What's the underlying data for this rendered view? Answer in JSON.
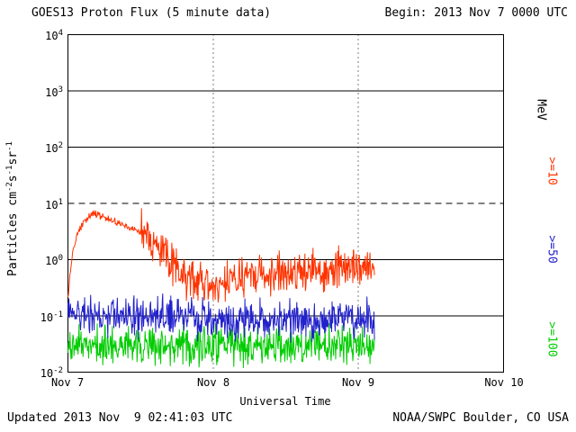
{
  "footer": {
    "updated": "Updated 2013 Nov  9 02:41:03 UTC",
    "source": "NOAA/SWPC Boulder, CO USA"
  },
  "chart_data": {
    "type": "line",
    "title": "GOES13 Proton Flux (5 minute data)",
    "begin_label": "Begin: 2013 Nov 7 0000 UTC",
    "xlabel": "Universal Time",
    "ylabel": "Particles cm-2s-1sr-1",
    "ylabel_parts": [
      "Particles cm",
      "-2",
      "s",
      "-1",
      "sr",
      "-1"
    ],
    "x_ticks": [
      "Nov 7",
      "Nov 8",
      "Nov 9",
      "Nov 10"
    ],
    "x_range_hours": [
      0,
      72
    ],
    "y_log_range": [
      -2,
      4
    ],
    "y_ticks": [
      {
        "base": "10",
        "exp": "4"
      },
      {
        "base": "10",
        "exp": "3"
      },
      {
        "base": "10",
        "exp": "2"
      },
      {
        "base": "10",
        "exp": "1"
      },
      {
        "base": "10",
        "exp": "0"
      },
      {
        "base": "10",
        "exp": "-1"
      },
      {
        "base": "10",
        "exp": "-2"
      }
    ],
    "grid": {
      "horizontal": "solid line per decade, dashed at threshold 10^1",
      "vertical": "dotted at day boundaries Nov 8 and Nov 9"
    },
    "threshold": {
      "value": 10,
      "style": "dashed"
    },
    "sample_minutes": 5,
    "data_end_hour": 50.68,
    "legend": {
      "position": "right",
      "title": "MeV",
      "entries": [
        {
          "label": ">=10",
          "color": "#ff3300"
        },
        {
          "label": ">=50",
          "color": "#2222cc"
        },
        {
          "label": ">=100",
          "color": "#00cc00"
        }
      ]
    },
    "series": [
      {
        "name": "Proton flux >=10 MeV",
        "label": ">=10",
        "color": "#ff3300",
        "hours": [
          0,
          0.7,
          1.5,
          2.5,
          3.5,
          4.2,
          5,
          6.5,
          8,
          10,
          11.5,
          13,
          15,
          17,
          19,
          21,
          24,
          28,
          32,
          36,
          40,
          44,
          48,
          50.7
        ],
        "values": [
          0.22,
          1.2,
          2.8,
          4.5,
          5.9,
          6.5,
          6.2,
          5.3,
          4.6,
          3.7,
          3.2,
          2.6,
          1.6,
          0.9,
          0.55,
          0.4,
          0.33,
          0.45,
          0.5,
          0.6,
          0.65,
          0.7,
          0.72,
          0.65
        ],
        "smooth_until_hour": 12,
        "noise_dex_smooth": 0.03,
        "noise_dex": 0.18
      },
      {
        "name": "Proton flux >=50 MeV",
        "label": ">=50",
        "color": "#2222cc",
        "hours": [
          0,
          6,
          12,
          24,
          36,
          48,
          50.7
        ],
        "values": [
          0.12,
          0.1,
          0.095,
          0.085,
          0.085,
          0.09,
          0.09
        ],
        "smooth_until_hour": 0,
        "noise_dex_smooth": 0.16,
        "noise_dex": 0.16
      },
      {
        "name": "Proton flux >=100 MeV",
        "label": ">=100",
        "color": "#00cc00",
        "hours": [
          0,
          12,
          24,
          36,
          48,
          50.7
        ],
        "values": [
          0.031,
          0.03,
          0.029,
          0.03,
          0.03,
          0.03
        ],
        "smooth_until_hour": 0,
        "noise_dex_smooth": 0.17,
        "noise_dex": 0.17
      }
    ]
  }
}
